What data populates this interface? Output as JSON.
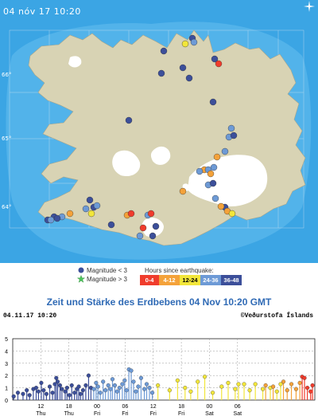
{
  "map": {
    "timestamp": "04 nóv 17 10:20",
    "lat_labels": [
      "66°",
      "65°",
      "64°"
    ],
    "colors": {
      "sea": "#2f9ee0",
      "land": "#d8d3b4",
      "ice": "#ffffff"
    },
    "compass_icon": "compass-star-icon"
  },
  "legend": {
    "magnitude_small": "Magnitude < 3",
    "magnitude_large": "Magnitude > 3",
    "hours_title": "Hours since earthquake:",
    "hours": [
      {
        "label": "0-4",
        "color": "#f03c2c"
      },
      {
        "label": "4-12",
        "color": "#f4a23a"
      },
      {
        "label": "12-24",
        "color": "#f2e63a"
      },
      {
        "label": "24-36",
        "color": "#6d9ad6"
      },
      {
        "label": "36-48",
        "color": "#3c4f9a"
      }
    ]
  },
  "chart": {
    "title": "Zeit und Stärke des Erdbebens 04 Nov 10:20 GMT",
    "date": "04.11.17 10:20",
    "credit": "©Veðurstofa Íslands"
  },
  "chart_data": {
    "type": "scatter",
    "ylim": [
      0,
      5
    ],
    "yticks": [
      "0",
      "1",
      "2",
      "3",
      "4",
      "5"
    ],
    "xticks": [
      {
        "hour": "12",
        "day": "Thu"
      },
      {
        "hour": "18",
        "day": "Thu"
      },
      {
        "hour": "00",
        "day": "Fri"
      },
      {
        "hour": "06",
        "day": "Fri"
      },
      {
        "hour": "12",
        "day": "Fri"
      },
      {
        "hour": "18",
        "day": "Fri"
      },
      {
        "hour": "00",
        "day": "Sat"
      },
      {
        "hour": "06",
        "day": "Sat"
      }
    ],
    "series": [
      {
        "color": "#3c4f9a",
        "points": [
          [
            0.2,
            0.3
          ],
          [
            1.1,
            0.6
          ],
          [
            2.2,
            0.5
          ],
          [
            3.0,
            0.8
          ],
          [
            3.6,
            0.4
          ],
          [
            4.4,
            0.9
          ],
          [
            5.0,
            1.0
          ],
          [
            5.5,
            0.7
          ],
          [
            6.1,
            1.4
          ],
          [
            6.6,
            0.8
          ],
          [
            7.2,
            0.5
          ],
          [
            7.9,
            1.1
          ],
          [
            8.5,
            0.6
          ],
          [
            9.0,
            1.3
          ],
          [
            9.3,
            1.8
          ],
          [
            9.6,
            1.5
          ],
          [
            10.1,
            1.2
          ],
          [
            10.5,
            0.9
          ],
          [
            11.2,
            0.7
          ],
          [
            11.6,
            1.0
          ],
          [
            12.1,
            0.4
          ],
          [
            12.6,
            1.2
          ],
          [
            13.2,
            0.6
          ],
          [
            13.7,
            0.9
          ],
          [
            14.1,
            1.1
          ],
          [
            14.5,
            0.5
          ],
          [
            15.0,
            0.8
          ],
          [
            15.6,
            1.2
          ],
          [
            16.2,
            2.0
          ],
          [
            16.7,
            1.0
          ]
        ]
      },
      {
        "color": "#6d9ad6",
        "points": [
          [
            17.3,
            0.9
          ],
          [
            17.8,
            1.4
          ],
          [
            18.2,
            1.1
          ],
          [
            18.7,
            0.6
          ],
          [
            19.3,
            1.5
          ],
          [
            19.8,
            0.8
          ],
          [
            20.4,
            1.2
          ],
          [
            20.9,
            0.9
          ],
          [
            21.3,
            1.7
          ],
          [
            21.8,
            1.2
          ],
          [
            22.3,
            0.7
          ],
          [
            22.8,
            1.0
          ],
          [
            23.4,
            1.3
          ],
          [
            23.9,
            1.6
          ],
          [
            24.3,
            0.8
          ],
          [
            24.8,
            2.5
          ],
          [
            25.3,
            2.4
          ],
          [
            25.8,
            1.5
          ],
          [
            26.3,
            0.7
          ],
          [
            26.8,
            1.1
          ],
          [
            27.4,
            1.8
          ],
          [
            28.1,
            0.9
          ],
          [
            28.6,
            1.3
          ],
          [
            29.2,
            1.0
          ],
          [
            29.8,
            0.6
          ]
        ]
      },
      {
        "color": "#f2e63a",
        "points": [
          [
            31.0,
            1.2
          ],
          [
            33.5,
            0.8
          ],
          [
            35.2,
            1.6
          ],
          [
            36.8,
            1.0
          ],
          [
            38.0,
            0.7
          ],
          [
            39.5,
            1.5
          ],
          [
            41.0,
            1.9
          ],
          [
            42.7,
            0.6
          ],
          [
            44.6,
            1.1
          ],
          [
            46.0,
            1.4
          ],
          [
            47.5,
            0.9
          ],
          [
            48.2,
            1.3
          ],
          [
            49.4,
            1.3
          ],
          [
            50.6,
            0.8
          ],
          [
            51.8,
            1.3
          ],
          [
            53.4,
            0.9
          ],
          [
            55.0,
            1.0
          ],
          [
            56.4,
            0.7
          ],
          [
            57.2,
            1.3
          ]
        ]
      },
      {
        "color": "#f4a23a",
        "points": [
          [
            54.0,
            1.2
          ],
          [
            55.6,
            1.1
          ],
          [
            57.8,
            1.5
          ],
          [
            58.6,
            0.8
          ],
          [
            59.5,
            1.3
          ],
          [
            60.5,
            0.9
          ],
          [
            61.3,
            1.4
          ]
        ]
      },
      {
        "color": "#f03c2c",
        "points": [
          [
            61.8,
            1.9
          ],
          [
            62.3,
            1.8
          ],
          [
            62.9,
            1.0
          ],
          [
            63.6,
            0.7
          ],
          [
            64.0,
            1.2
          ]
        ]
      }
    ]
  }
}
